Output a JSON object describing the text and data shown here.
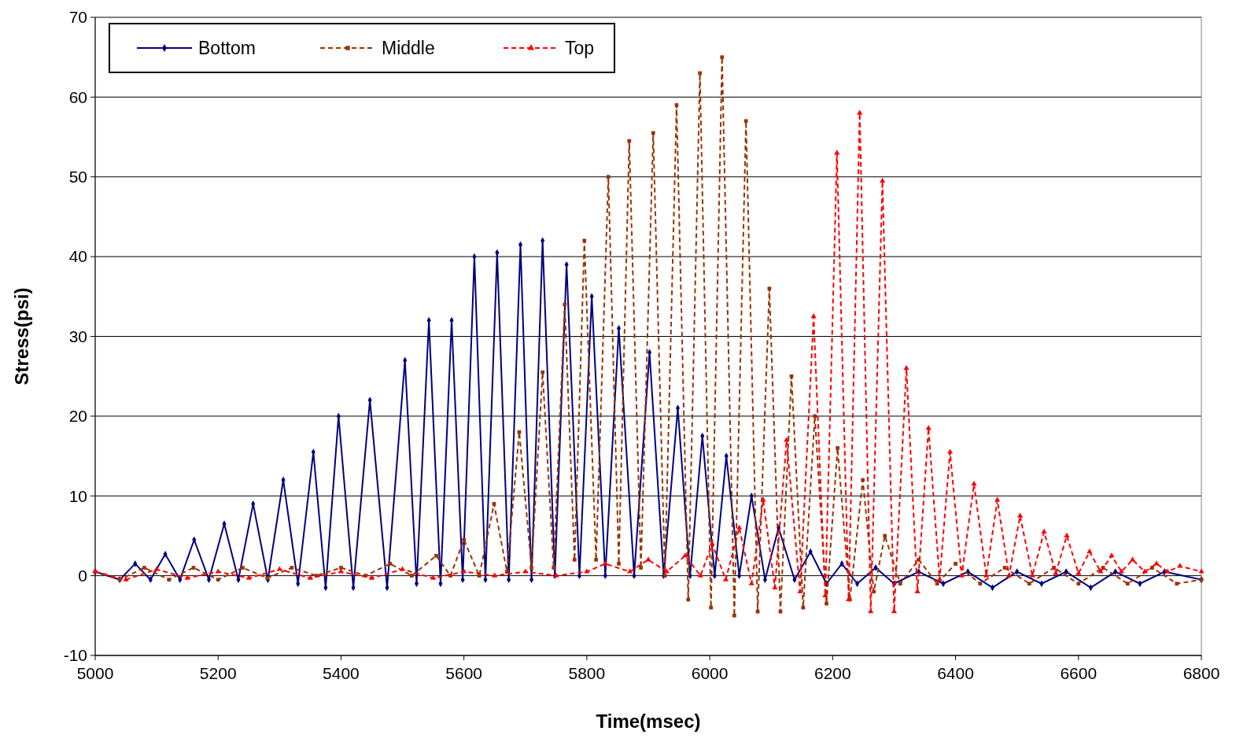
{
  "chart_data": {
    "type": "line",
    "xlabel": "Time(msec)",
    "ylabel": "Stress(psi)",
    "xlim": [
      5000,
      6800
    ],
    "xticks": [
      5000,
      5200,
      5400,
      5600,
      5800,
      6000,
      6200,
      6400,
      6600,
      6800
    ],
    "ylim": [
      -10,
      70
    ],
    "yticks": [
      -10,
      0,
      10,
      20,
      30,
      40,
      50,
      60,
      70
    ],
    "grid": "y",
    "legend": "top left",
    "series": [
      {
        "name": "Bottom",
        "color": "#000080",
        "marker": "diamond",
        "line_style": "solid",
        "x": [
          5000,
          5040,
          5065,
          5090,
          5114,
          5138,
          5161,
          5185,
          5210,
          5233,
          5257,
          5281,
          5306,
          5330,
          5355,
          5375,
          5396,
          5420,
          5447,
          5475,
          5504,
          5523,
          5543,
          5562,
          5580,
          5598,
          5617,
          5635,
          5654,
          5673,
          5692,
          5710,
          5728,
          5748,
          5767,
          5788,
          5808,
          5830,
          5852,
          5877,
          5902,
          5925,
          5948,
          5968,
          5988,
          6008,
          6027,
          6048,
          6068,
          6090,
          6112,
          6138,
          6164,
          6190,
          6215,
          6240,
          6270,
          6300,
          6340,
          6380,
          6420,
          6460,
          6500,
          6540,
          6580,
          6620,
          6660,
          6700,
          6740,
          6800
        ],
        "values": [
          0.5,
          -0.5,
          1.5,
          -0.5,
          2.7,
          -0.5,
          4.5,
          -0.5,
          6.5,
          -0.5,
          9,
          -0.5,
          12,
          -1,
          15.5,
          -1.5,
          20,
          -1.5,
          22,
          -1.5,
          27,
          -1,
          32,
          -1,
          32,
          -0.5,
          40,
          -0.5,
          40.5,
          -0.5,
          41.5,
          -0.5,
          42,
          0,
          39,
          0,
          35,
          0,
          31,
          0,
          28,
          0,
          21,
          0,
          17.5,
          0,
          15,
          0,
          10,
          -0.5,
          6,
          -0.5,
          3,
          -1,
          1.5,
          -1,
          1,
          -1,
          0.5,
          -1,
          0.5,
          -1.5,
          0.5,
          -1,
          0.5,
          -1.5,
          0.5,
          -1,
          0.5,
          -0.5
        ]
      },
      {
        "name": "Middle",
        "color": "#993300",
        "marker": "square",
        "line_style": "dashed",
        "x": [
          5000,
          5040,
          5080,
          5120,
          5160,
          5200,
          5240,
          5280,
          5320,
          5360,
          5400,
          5440,
          5480,
          5515,
          5555,
          5578,
          5600,
          5625,
          5649,
          5670,
          5690,
          5710,
          5728,
          5746,
          5764,
          5780,
          5796,
          5815,
          5835,
          5852,
          5869,
          5888,
          5908,
          5927,
          5946,
          5965,
          5984,
          6002,
          6020,
          6040,
          6059,
          6078,
          6097,
          6115,
          6133,
          6152,
          6171,
          6190,
          6208,
          6228,
          6249,
          6267,
          6285,
          6310,
          6340,
          6370,
          6400,
          6440,
          6480,
          6520,
          6560,
          6600,
          6640,
          6680,
          6720,
          6760,
          6800
        ],
        "values": [
          0.5,
          -0.5,
          1,
          -0.5,
          1,
          -0.5,
          1,
          -0.3,
          1,
          0,
          1,
          0,
          1.5,
          0,
          2.5,
          0,
          4.5,
          0,
          9,
          0.5,
          18,
          1,
          25.5,
          1,
          34,
          2,
          42,
          2,
          50,
          1.5,
          54.5,
          1,
          55.5,
          0,
          59,
          -3,
          63,
          -4,
          65,
          -5,
          57,
          -4.5,
          36,
          -4.5,
          25,
          -4,
          20,
          -3.5,
          16,
          -3,
          12,
          -2,
          5,
          -1,
          2,
          -1,
          1.5,
          -1,
          1,
          -1,
          1,
          -1,
          1,
          -1,
          1,
          -1,
          -0.5
        ]
      },
      {
        "name": "Top",
        "color": "#ff0000",
        "marker": "triangle",
        "line_style": "dashed",
        "x": [
          5000,
          5050,
          5100,
          5150,
          5200,
          5250,
          5300,
          5350,
          5400,
          5450,
          5500,
          5550,
          5600,
          5650,
          5700,
          5750,
          5800,
          5830,
          5870,
          5900,
          5930,
          5960,
          5985,
          6004,
          6026,
          6048,
          6068,
          6087,
          6106,
          6125,
          6147,
          6169,
          6188,
          6207,
          6226,
          6244,
          6262,
          6281,
          6300,
          6320,
          6338,
          6356,
          6374,
          6391,
          6410,
          6430,
          6450,
          6468,
          6487,
          6505,
          6525,
          6544,
          6563,
          6581,
          6600,
          6618,
          6636,
          6654,
          6670,
          6688,
          6708,
          6727,
          6745,
          6765,
          6800
        ],
        "values": [
          0.5,
          -0.5,
          0.8,
          -0.3,
          0.5,
          -0.3,
          0.8,
          -0.3,
          0.5,
          -0.3,
          0.8,
          -0.3,
          0.5,
          0,
          0.5,
          0,
          0.5,
          1.5,
          0.5,
          2,
          0.5,
          2.5,
          0,
          4,
          -0.5,
          6,
          -1,
          9.5,
          -1.5,
          17,
          -2,
          32.5,
          -2.5,
          53,
          -3,
          58,
          -4.5,
          49.5,
          -4.5,
          26,
          -2,
          18.5,
          -0.5,
          15.5,
          0,
          11.5,
          0,
          9.5,
          0,
          7.5,
          0,
          5.5,
          0.3,
          5,
          0.3,
          3,
          0.5,
          2.5,
          0.5,
          2,
          0.5,
          1.5,
          0.5,
          1.2,
          0.5
        ]
      }
    ]
  }
}
